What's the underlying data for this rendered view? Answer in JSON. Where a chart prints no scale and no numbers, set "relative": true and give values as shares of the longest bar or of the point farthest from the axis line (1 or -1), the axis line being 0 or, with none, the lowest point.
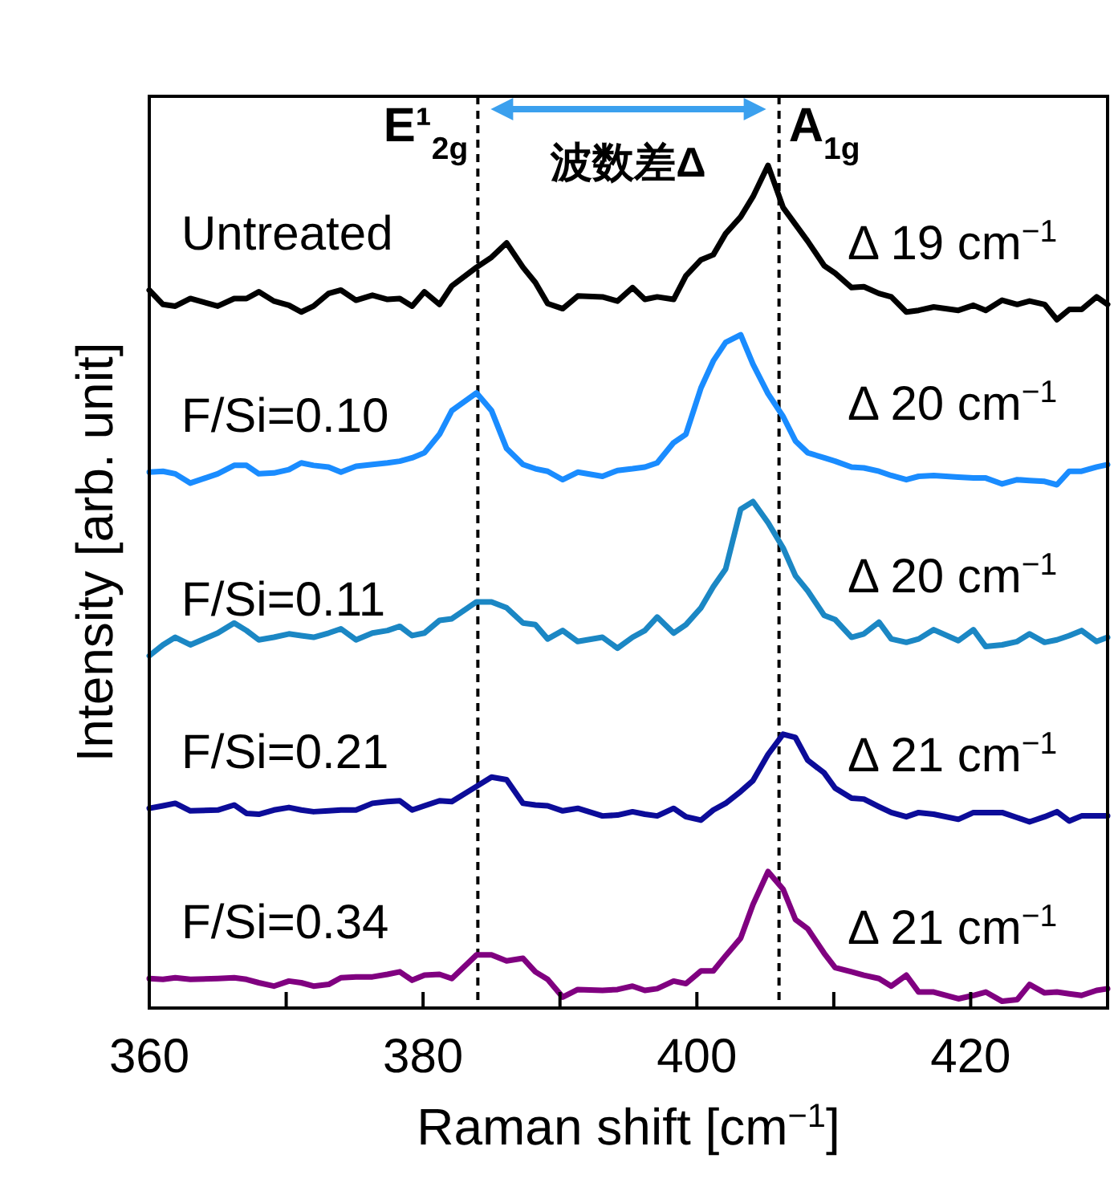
{
  "chart_data": {
    "type": "line",
    "relative": true,
    "xlabel": "Raman shift [cm$^{−1}$]",
    "ylabel": "Intensity [arb. unit]",
    "xlim": [
      360,
      430
    ],
    "xticks": [
      360,
      {
        "value": 370,
        "label": null
      },
      380,
      {
        "value": 390,
        "label": null
      },
      400,
      {
        "value": 410,
        "label": null
      },
      420,
      {
        "value": 430,
        "label": null
      }
    ],
    "x": [
      360.0,
      361.0,
      361.9,
      363.0,
      365.0,
      366.2,
      367.1,
      368.0,
      369.1,
      370.2,
      371.1,
      372.0,
      373.1,
      374.0,
      375.1,
      376.3,
      377.4,
      378.3,
      379.2,
      380.1,
      381.2,
      382.1,
      383.9,
      385.0,
      386.1,
      387.3,
      388.2,
      389.1,
      390.2,
      391.3,
      393.1,
      394.2,
      395.3,
      396.2,
      397.1,
      398.3,
      399.2,
      400.3,
      401.2,
      402.1,
      403.2,
      404.1,
      405.2,
      406.3,
      407.2,
      408.1,
      409.3,
      410.1,
      411.3,
      412.2,
      413.3,
      414.2,
      415.3,
      416.2,
      417.3,
      419.1,
      420.2,
      421.1,
      422.3,
      423.4,
      424.3,
      425.4,
      426.3,
      427.2,
      428.1,
      429.2,
      430.0
    ],
    "series": [
      {
        "name": "Untreated",
        "color": "#000000",
        "values": [
          0.852,
          0.835,
          0.833,
          0.842,
          0.833,
          0.842,
          0.842,
          0.85,
          0.839,
          0.834,
          0.826,
          0.833,
          0.848,
          0.852,
          0.84,
          0.846,
          0.841,
          0.842,
          0.833,
          0.85,
          0.835,
          0.857,
          0.879,
          0.891,
          0.908,
          0.879,
          0.861,
          0.836,
          0.83,
          0.845,
          0.844,
          0.839,
          0.855,
          0.841,
          0.844,
          0.841,
          0.869,
          0.888,
          0.894,
          0.919,
          0.939,
          0.963,
          1.0,
          0.95,
          0.93,
          0.91,
          0.881,
          0.872,
          0.855,
          0.856,
          0.848,
          0.844,
          0.826,
          0.828,
          0.832,
          0.828,
          0.834,
          0.828,
          0.84,
          0.835,
          0.839,
          0.835,
          0.817,
          0.829,
          0.829,
          0.844,
          0.835
        ]
      },
      {
        "name": "F/Si=0.10",
        "color": "#1a8cff",
        "values": [
          0.636,
          0.637,
          0.634,
          0.623,
          0.634,
          0.644,
          0.644,
          0.634,
          0.635,
          0.639,
          0.647,
          0.644,
          0.642,
          0.636,
          0.643,
          0.645,
          0.647,
          0.649,
          0.653,
          0.659,
          0.681,
          0.709,
          0.73,
          0.709,
          0.664,
          0.645,
          0.64,
          0.637,
          0.627,
          0.636,
          0.631,
          0.638,
          0.64,
          0.642,
          0.647,
          0.671,
          0.681,
          0.736,
          0.768,
          0.79,
          0.799,
          0.764,
          0.729,
          0.702,
          0.673,
          0.659,
          0.653,
          0.649,
          0.642,
          0.641,
          0.637,
          0.632,
          0.627,
          0.631,
          0.632,
          0.63,
          0.629,
          0.629,
          0.622,
          0.627,
          0.626,
          0.625,
          0.621,
          0.637,
          0.637,
          0.642,
          0.645
        ]
      },
      {
        "name": "F/Si=0.11",
        "color": "#1b87c4",
        "values": [
          0.418,
          0.431,
          0.44,
          0.431,
          0.445,
          0.457,
          0.448,
          0.437,
          0.44,
          0.444,
          0.442,
          0.44,
          0.445,
          0.45,
          0.437,
          0.445,
          0.448,
          0.453,
          0.442,
          0.445,
          0.46,
          0.462,
          0.482,
          0.482,
          0.475,
          0.457,
          0.455,
          0.438,
          0.448,
          0.435,
          0.44,
          0.427,
          0.44,
          0.448,
          0.464,
          0.445,
          0.455,
          0.475,
          0.5,
          0.521,
          0.592,
          0.601,
          0.576,
          0.546,
          0.513,
          0.495,
          0.466,
          0.461,
          0.44,
          0.444,
          0.458,
          0.438,
          0.434,
          0.438,
          0.449,
          0.436,
          0.449,
          0.429,
          0.431,
          0.435,
          0.444,
          0.434,
          0.437,
          0.442,
          0.448,
          0.435,
          0.44
        ]
      },
      {
        "name": "F/Si=0.21",
        "color": "#0c0c99",
        "values": [
          0.237,
          0.24,
          0.243,
          0.234,
          0.235,
          0.241,
          0.231,
          0.23,
          0.235,
          0.238,
          0.235,
          0.233,
          0.234,
          0.235,
          0.235,
          0.243,
          0.245,
          0.246,
          0.235,
          0.24,
          0.246,
          0.245,
          0.263,
          0.274,
          0.271,
          0.243,
          0.241,
          0.24,
          0.234,
          0.237,
          0.228,
          0.229,
          0.233,
          0.23,
          0.228,
          0.237,
          0.227,
          0.223,
          0.235,
          0.243,
          0.257,
          0.27,
          0.301,
          0.325,
          0.321,
          0.294,
          0.279,
          0.261,
          0.249,
          0.248,
          0.239,
          0.232,
          0.227,
          0.232,
          0.23,
          0.224,
          0.232,
          0.232,
          0.232,
          0.226,
          0.221,
          0.227,
          0.233,
          0.222,
          0.228,
          0.228,
          0.228
        ]
      },
      {
        "name": "F/Si=0.34",
        "color": "#800080",
        "values": [
          0.035,
          0.034,
          0.036,
          0.034,
          0.035,
          0.036,
          0.034,
          0.03,
          0.026,
          0.032,
          0.03,
          0.026,
          0.028,
          0.036,
          0.037,
          0.037,
          0.04,
          0.043,
          0.033,
          0.039,
          0.04,
          0.035,
          0.063,
          0.063,
          0.056,
          0.059,
          0.043,
          0.034,
          0.013,
          0.022,
          0.021,
          0.022,
          0.026,
          0.021,
          0.023,
          0.032,
          0.029,
          0.044,
          0.044,
          0.062,
          0.083,
          0.123,
          0.162,
          0.141,
          0.105,
          0.094,
          0.065,
          0.048,
          0.043,
          0.039,
          0.035,
          0.026,
          0.039,
          0.019,
          0.019,
          0.011,
          0.015,
          0.019,
          0.008,
          0.01,
          0.028,
          0.018,
          0.019,
          0.017,
          0.015,
          0.021,
          0.023
        ]
      }
    ],
    "ref_lines": [
      {
        "axis": "x",
        "value": 384,
        "label": "E¹$_{2g}$",
        "color": "#000000",
        "line_style": "dashed"
      },
      {
        "axis": "x",
        "value": 406,
        "label": "A$_{1g}$",
        "color": "#000000",
        "line_style": "dashed"
      }
    ],
    "annotations": [
      "波数差Δ",
      "Δ 19 cm$^{−1}$",
      "Δ 20 cm$^{−1}$",
      "Δ 20 cm$^{−1}$",
      "Δ 21 cm$^{−1}$",
      "Δ 21 cm$^{−1}$"
    ]
  }
}
